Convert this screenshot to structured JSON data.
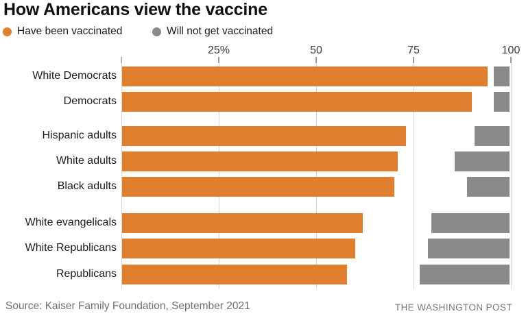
{
  "title": "How Americans view the vaccine",
  "legend": [
    {
      "label": "Have been vaccinated",
      "color": "#E07F2E"
    },
    {
      "label": "Will not get vaccinated",
      "color": "#8A8A8A"
    }
  ],
  "footer": {
    "source": "Source: Kaiser Family Foundation, September 2021",
    "credit": "THE WASHINGTON POST"
  },
  "chart_data": {
    "type": "bar",
    "orientation": "horizontal",
    "title": "How Americans view the vaccine",
    "categories": [
      "White Democrats",
      "Democrats",
      "Hispanic adults",
      "White adults",
      "Black adults",
      "White evangelicals",
      "White Republicans",
      "Republicans"
    ],
    "series": [
      {
        "name": "Have been vaccinated",
        "color": "#E07F2E",
        "anchor": "left",
        "values": [
          94,
          90,
          73,
          71,
          70,
          62,
          60,
          58
        ]
      },
      {
        "name": "Will not get vaccinated",
        "color": "#8A8A8A",
        "anchor": "right",
        "values": [
          4,
          4,
          9,
          14,
          11,
          20,
          21,
          23
        ]
      }
    ],
    "xlim": [
      0,
      100
    ],
    "x_ticks": [
      {
        "value": 0,
        "label": ""
      },
      {
        "value": 25,
        "label": "25%"
      },
      {
        "value": 50,
        "label": "50"
      },
      {
        "value": 75,
        "label": "75"
      },
      {
        "value": 100,
        "label": "100"
      }
    ],
    "groups": [
      [
        "White Democrats",
        "Democrats"
      ],
      [
        "Hispanic adults",
        "White adults",
        "Black adults"
      ],
      [
        "White evangelicals",
        "White Republicans",
        "Republicans"
      ]
    ],
    "grid": true,
    "legend_position": "top"
  }
}
